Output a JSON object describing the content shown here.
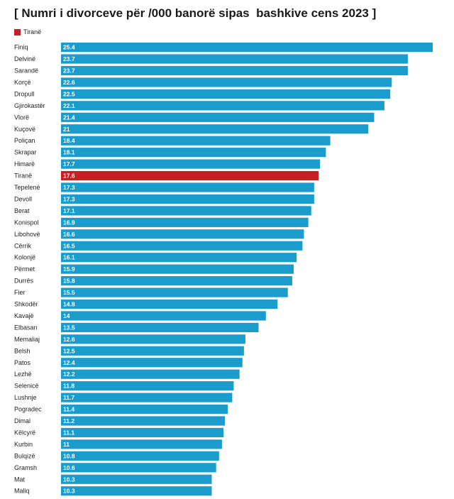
{
  "title": "[ Numri i divorceve për /000 banorë sipas  bashkive cens 2023 ]",
  "legend": {
    "label": "Tiranë",
    "color": "#c71f24"
  },
  "colors": {
    "bar": "#1a9ccc",
    "highlight": "#c71f24"
  },
  "chart_data": {
    "type": "bar",
    "orientation": "horizontal",
    "title": "[ Numri i divorceve për /000 banorë sipas  bashkive cens 2023 ]",
    "xlabel": "",
    "ylabel": "",
    "xlim": [
      0,
      25.4
    ],
    "highlight": "Tiranë",
    "categories": [
      "Finiq",
      "Delvinë",
      "Sarandë",
      "Korçë",
      "Dropull",
      "Gjirokastër",
      "Vlorë",
      "Kuçovë",
      "Poliçan",
      "Skrapar",
      "Himarë",
      "Tiranë",
      "Tepelenë",
      "Devoll",
      "Berat",
      "Konispol",
      "Libohovë",
      "Cërrik",
      "Kolonjë",
      "Përmet",
      "Durrës",
      "Fier",
      "Shkodër",
      "Kavajë",
      "Elbasan",
      "Memaliaj",
      "Belsh",
      "Patos",
      "Lezhë",
      "Selenicë",
      "Lushnje",
      "Pogradec",
      "Dimal",
      "Këlcyrë",
      "Kurbin",
      "Bulqizë",
      "Gramsh",
      "Mat",
      "Maliq"
    ],
    "values": [
      25.4,
      23.7,
      23.7,
      22.6,
      22.5,
      22.1,
      21.4,
      21,
      18.4,
      18.1,
      17.7,
      17.6,
      17.3,
      17.3,
      17.1,
      16.9,
      16.6,
      16.5,
      16.1,
      15.9,
      15.8,
      15.5,
      14.8,
      14,
      13.5,
      12.6,
      12.5,
      12.4,
      12.2,
      11.8,
      11.7,
      11.4,
      11.2,
      11.1,
      11,
      10.8,
      10.6,
      10.3,
      10.3
    ],
    "labels": [
      "25.4",
      "23.7",
      "23.7",
      "22.6",
      "22.5",
      "22.1",
      "21.4",
      "21",
      "18.4",
      "18.1",
      "17.7",
      "17.6",
      "17.3",
      "17.3",
      "17.1",
      "16.9",
      "16.6",
      "16.5",
      "16.1",
      "15.9",
      "15.8",
      "15.5",
      "14.8",
      "14",
      "13.5",
      "12.6",
      "12.5",
      "12.4",
      "12.2",
      "11.8",
      "11.7",
      "11.4",
      "11.2",
      "11.1",
      "11",
      "10.8",
      "10.6",
      "10.3",
      "10.3"
    ]
  }
}
